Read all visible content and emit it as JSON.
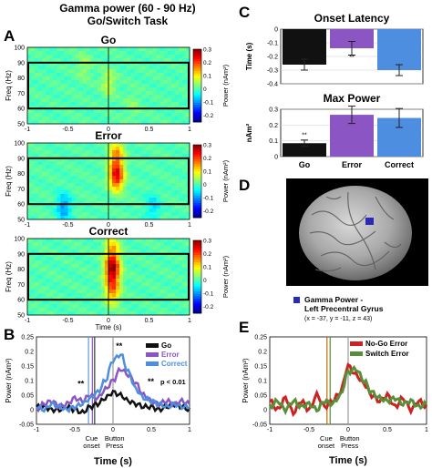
{
  "header": {
    "line1": "Gamma power (60 - 90 Hz)",
    "line2": "Go/Switch Task"
  },
  "panel_letters": {
    "a": "A",
    "b": "B",
    "c": "C",
    "d": "D",
    "e": "E"
  },
  "colors": {
    "go": "#111111",
    "error": "#8b55c4",
    "correct": "#4d8ee0",
    "nogo_error": "#cc2222",
    "switch_error": "#5a8f3a"
  },
  "chart_data": [
    {
      "type": "heatmap",
      "title": "Go",
      "ylabel": "Freq (Hz)",
      "xlim": [
        -1,
        1
      ],
      "ylim": [
        50,
        100
      ],
      "x_ticks": [
        "-1",
        "-0.5",
        "0",
        "0.5",
        "1"
      ],
      "y_ticks": [
        "50",
        "60",
        "70",
        "80",
        "90",
        "100"
      ],
      "colorbar": {
        "label": "Power (nAm²)",
        "ticks": [
          "0.3",
          "0.2",
          "0.1",
          "0",
          "-0.1",
          "-0.2"
        ],
        "range": [
          -0.25,
          0.3
        ]
      },
      "highlight_box_freq": [
        60,
        90
      ],
      "blobs": [
        {
          "t": 0.0,
          "f": 77,
          "v": 0.06
        },
        {
          "t": -0.3,
          "f": 88,
          "v": 0.04
        },
        {
          "t": 0.3,
          "f": 62,
          "v": 0.03
        }
      ]
    },
    {
      "type": "heatmap",
      "title": "Error",
      "ylabel": "Freq (Hz)",
      "xlim": [
        -1,
        1
      ],
      "ylim": [
        50,
        100
      ],
      "x_ticks": [
        "-1",
        "-0.5",
        "0",
        "0.5",
        "1"
      ],
      "y_ticks": [
        "50",
        "60",
        "70",
        "80",
        "90",
        "100"
      ],
      "colorbar": {
        "label": "Power (nAm²)",
        "ticks": [
          "0.3",
          "0.2",
          "0.1",
          "0",
          "-0.1",
          "-0.2"
        ],
        "range": [
          -0.25,
          0.3
        ]
      },
      "highlight_box_freq": [
        60,
        90
      ],
      "blobs": [
        {
          "t": 0.1,
          "f": 78,
          "v": 0.24
        },
        {
          "t": 0.1,
          "f": 92,
          "v": 0.15
        },
        {
          "t": -0.55,
          "f": 58,
          "v": -0.1
        },
        {
          "t": 0.55,
          "f": 58,
          "v": -0.06
        }
      ]
    },
    {
      "type": "heatmap",
      "title": "Correct",
      "ylabel": "Freq (Hz)",
      "xlabel": "Time (s)",
      "xlim": [
        -1,
        1
      ],
      "ylim": [
        50,
        100
      ],
      "x_ticks": [
        "-1",
        "-0.5",
        "0",
        "0.5",
        "1"
      ],
      "y_ticks": [
        "50",
        "60",
        "70",
        "80",
        "90",
        "100"
      ],
      "colorbar": {
        "label": "Power (nAm²)",
        "ticks": [
          "0.3",
          "0.2",
          "0.1",
          "0",
          "-0.1",
          "-0.2"
        ],
        "range": [
          -0.25,
          0.3
        ]
      },
      "highlight_box_freq": [
        60,
        90
      ],
      "blobs": [
        {
          "t": 0.05,
          "f": 80,
          "v": 0.27
        },
        {
          "t": 0.05,
          "f": 66,
          "v": 0.16
        },
        {
          "t": 0.05,
          "f": 93,
          "v": 0.12
        }
      ]
    },
    {
      "type": "line",
      "panel": "B",
      "xlabel": "Time (s)",
      "ylabel": "Power (nAm²)",
      "xlim": [
        -1,
        1
      ],
      "ylim": [
        -0.05,
        0.25
      ],
      "x_ticks": [
        "-1",
        "-0.5",
        "0",
        "0.5",
        "1"
      ],
      "y_ticks": [
        "-0.05",
        "0",
        "0.05",
        "0.1",
        "0.15",
        "0.2",
        "0.25"
      ],
      "legend": [
        "Go",
        "Error",
        "Correct"
      ],
      "annotations": {
        "sig_marker": "**",
        "sig_text": "p < 0.01",
        "cue": "Cue onset",
        "button": "Button Press"
      },
      "x": [
        -1,
        -0.9,
        -0.8,
        -0.7,
        -0.6,
        -0.5,
        -0.4,
        -0.3,
        -0.2,
        -0.1,
        0,
        0.1,
        0.2,
        0.3,
        0.4,
        0.5,
        0.6,
        0.7,
        0.8,
        0.9,
        1
      ],
      "series": [
        {
          "name": "Go",
          "values": [
            0.01,
            0.01,
            0.0,
            0.0,
            0.01,
            0.0,
            -0.01,
            0.01,
            0.02,
            0.04,
            0.06,
            0.05,
            0.03,
            0.02,
            0.01,
            0.01,
            0.0,
            0.01,
            0.02,
            0.01,
            0.0
          ]
        },
        {
          "name": "Error",
          "values": [
            0.0,
            0.02,
            0.03,
            0.01,
            0.02,
            0.04,
            0.03,
            0.05,
            0.04,
            0.07,
            0.1,
            0.14,
            0.12,
            0.09,
            0.05,
            0.03,
            0.02,
            0.03,
            0.02,
            0.03,
            0.02
          ]
        },
        {
          "name": "Correct",
          "values": [
            0.01,
            0.0,
            0.02,
            0.01,
            0.0,
            0.01,
            0.02,
            0.04,
            0.06,
            0.1,
            0.17,
            0.19,
            0.13,
            0.07,
            0.04,
            0.03,
            0.02,
            0.01,
            0.02,
            0.01,
            0.01
          ]
        }
      ]
    },
    {
      "type": "bar",
      "panel": "C-top",
      "title": "Onset Latency",
      "ylabel": "Time (s)",
      "ylim": [
        -0.4,
        0
      ],
      "y_ticks": [
        "0",
        "-0.1",
        "-0.2",
        "-0.3",
        "-0.4"
      ],
      "categories": [
        "Go",
        "Error",
        "Correct"
      ],
      "values": [
        -0.26,
        -0.14,
        -0.3
      ],
      "errors": [
        0.04,
        0.05,
        0.04
      ],
      "sig_marker": "**"
    },
    {
      "type": "bar",
      "panel": "C-bottom",
      "title": "Max Power",
      "ylabel": "nAm²",
      "ylim": [
        0,
        0.3
      ],
      "y_ticks": [
        "0",
        "0.1",
        "0.2",
        "0.3"
      ],
      "categories": [
        "Go",
        "Error",
        "Correct"
      ],
      "values": [
        0.085,
        0.265,
        0.245
      ],
      "errors": [
        0.02,
        0.055,
        0.06
      ],
      "sig_marker": "**"
    },
    {
      "type": "line",
      "panel": "E",
      "xlabel": "Time (s)",
      "ylabel": "Power (nAm²)",
      "xlim": [
        -1,
        1
      ],
      "ylim": [
        -0.05,
        0.25
      ],
      "x_ticks": [
        "-1",
        "-0.5",
        "0",
        "0.5",
        "1"
      ],
      "y_ticks": [
        "-0.05",
        "0",
        "0.05",
        "0.1",
        "0.15",
        "0.2",
        "0.25"
      ],
      "legend": [
        "No-Go Error",
        "Switch Error"
      ],
      "annotations": {
        "cue": "Cue onset",
        "button": "Button Press"
      },
      "x": [
        -1,
        -0.9,
        -0.8,
        -0.7,
        -0.6,
        -0.5,
        -0.4,
        -0.3,
        -0.2,
        -0.1,
        0,
        0.1,
        0.2,
        0.3,
        0.4,
        0.5,
        0.6,
        0.7,
        0.8,
        0.9,
        1
      ],
      "series": [
        {
          "name": "No-Go Error",
          "values": [
            0.03,
            0.0,
            0.04,
            -0.01,
            0.03,
            0.0,
            0.05,
            0.01,
            0.03,
            0.06,
            0.15,
            0.12,
            0.09,
            0.05,
            0.03,
            0.05,
            0.01,
            0.04,
            0.0,
            0.03,
            0.01
          ]
        },
        {
          "name": "Switch Error",
          "values": [
            0.01,
            0.03,
            0.0,
            0.03,
            0.01,
            0.02,
            0.0,
            0.03,
            0.02,
            0.05,
            0.13,
            0.14,
            0.1,
            0.06,
            0.04,
            0.03,
            0.04,
            0.02,
            0.03,
            0.01,
            0.02
          ]
        }
      ]
    }
  ],
  "brain": {
    "legend_label": "Gamma Power -",
    "legend_label2": "Left Precentral Gyrus",
    "coords": "(x = -37, y = -11, z = 43)"
  }
}
